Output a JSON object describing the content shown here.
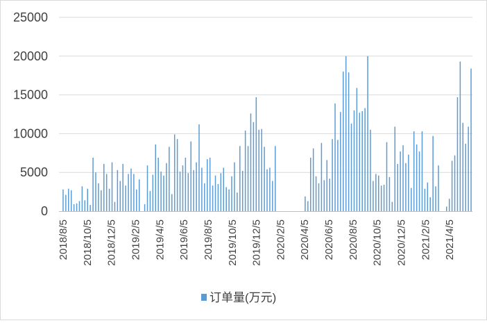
{
  "chart_data": {
    "type": "bar",
    "title": "",
    "xlabel": "",
    "ylabel": "",
    "ylim": [
      0,
      25000
    ],
    "yticks": [
      "0",
      "5000",
      "10000",
      "15000",
      "20000",
      "25000"
    ],
    "xtick_labels": [
      "2018/8/5",
      "2018/10/5",
      "2018/12/5",
      "2019/2/5",
      "2019/4/5",
      "2019/6/5",
      "2019/8/5",
      "2019/10/5",
      "2019/12/5",
      "2020/2/5",
      "2020/4/5",
      "2020/6/5",
      "2020/8/5",
      "2020/10/5",
      "2020/12/5",
      "2021/2/5",
      "2021/4/5"
    ],
    "grid": "horizontal",
    "legend_position": "bottom",
    "series": [
      {
        "name": "订单量(万元)",
        "color": "#5b9bd5",
        "values": [
          2800,
          2100,
          2900,
          2700,
          900,
          1000,
          1300,
          3200,
          1400,
          2900,
          800,
          6900,
          5000,
          3600,
          2700,
          6100,
          4800,
          2900,
          6300,
          1200,
          5300,
          3900,
          6100,
          3300,
          4800,
          5500,
          4800,
          2800,
          4100,
          0,
          900,
          5900,
          2600,
          4700,
          8600,
          6900,
          5100,
          4600,
          6200,
          8300,
          2200,
          9900,
          9300,
          5100,
          5900,
          6900,
          4900,
          9000,
          5300,
          6300,
          11200,
          5600,
          3600,
          6700,
          6900,
          3300,
          4600,
          3500,
          4900,
          5600,
          3100,
          2800,
          4500,
          6300,
          2400,
          8400,
          5200,
          10400,
          8400,
          12600,
          11500,
          14700,
          10500,
          10600,
          8300,
          5400,
          5600,
          3900,
          8400,
          0,
          0,
          0,
          0,
          0,
          0,
          0,
          0,
          0,
          0,
          1900,
          1300,
          6900,
          8100,
          4500,
          3600,
          8800,
          4000,
          6600,
          4200,
          9300,
          13900,
          9200,
          12800,
          18000,
          20000,
          17900,
          11300,
          13000,
          15900,
          12700,
          12900,
          13300,
          20000,
          10500,
          3900,
          4800,
          4600,
          3300,
          3400,
          8900,
          4400,
          1200,
          10900,
          6100,
          7700,
          8500,
          6200,
          7300,
          3000,
          10300,
          8600,
          7700,
          10300,
          2900,
          3700,
          1800,
          9700,
          3200,
          5900,
          0,
          0,
          600,
          1600,
          6500,
          7200,
          14700,
          19300,
          11400,
          8700,
          10900,
          18400
        ]
      }
    ]
  }
}
